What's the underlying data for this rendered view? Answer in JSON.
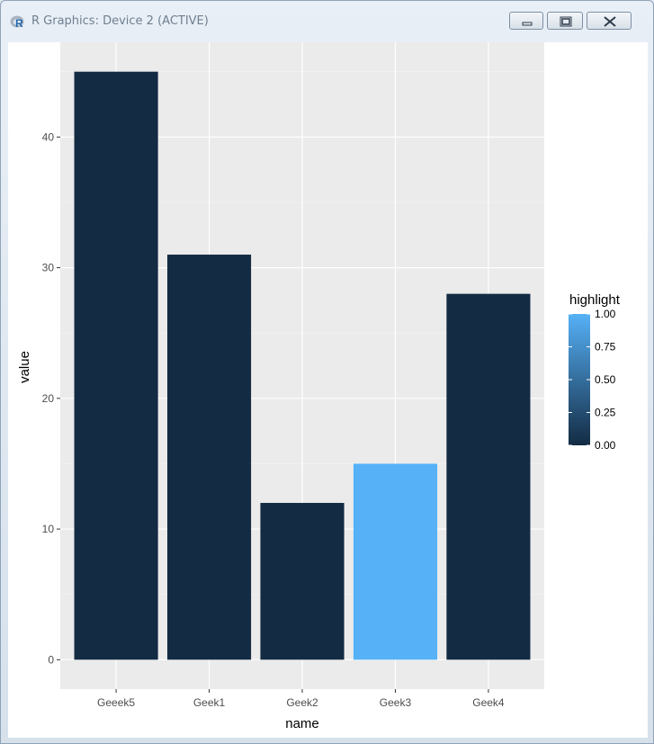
{
  "window": {
    "title": "R Graphics: Device 2 (ACTIVE)",
    "app_icon": "r-logo-icon"
  },
  "controls": {
    "minimize_icon": "minimize-icon",
    "maximize_icon": "maximize-icon",
    "close_icon": "close-icon"
  },
  "chart_data": {
    "type": "bar",
    "title": "",
    "xlabel": "name",
    "ylabel": "value",
    "categories": [
      "Geeek5",
      "Geek1",
      "Geek2",
      "Geek3",
      "Geek4"
    ],
    "values": [
      45,
      31,
      12,
      15,
      28
    ],
    "highlight": [
      0,
      0,
      0,
      1,
      0
    ],
    "ylim": [
      -2.25,
      47.25
    ],
    "yticks": [
      0,
      10,
      20,
      30,
      40
    ],
    "grid": true,
    "panel_background": "#EBEBEB",
    "colors": {
      "low": "#132B43",
      "high": "#56B1F7"
    },
    "legend": {
      "title": "highlight",
      "position": "right",
      "ticks": [
        1.0,
        0.75,
        0.5,
        0.25,
        0.0
      ],
      "tick_labels": [
        "1.00",
        "0.75",
        "0.50",
        "0.25",
        "0.00"
      ]
    }
  }
}
